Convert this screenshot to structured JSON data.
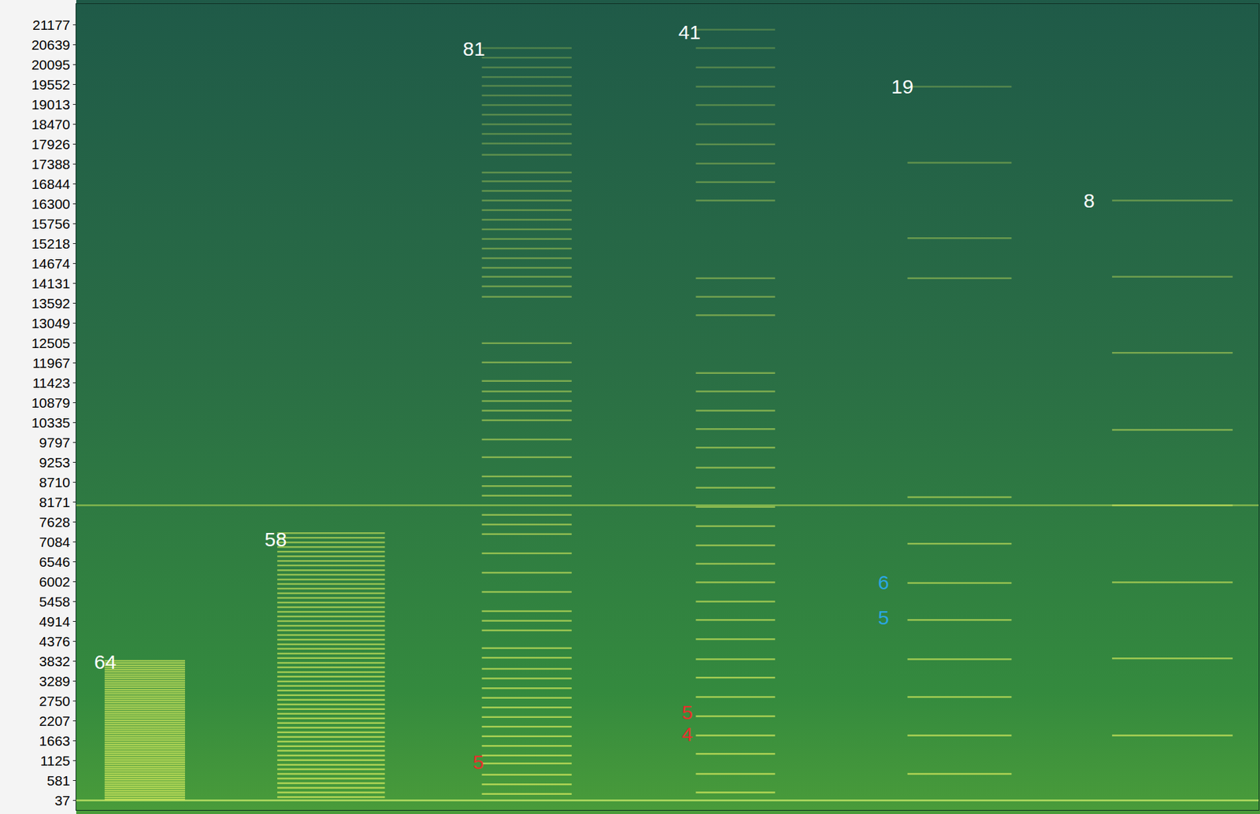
{
  "chart_data": {
    "type": "spectrogram",
    "xlim": [
      0,
      100
    ],
    "ylim": [
      -225,
      21745
    ],
    "yticks": [
      37,
      581,
      1125,
      1663,
      2207,
      2750,
      3289,
      3832,
      4376,
      4914,
      5458,
      6002,
      6546,
      7084,
      7628,
      8171,
      8710,
      9253,
      9797,
      10335,
      10879,
      11423,
      11967,
      12505,
      13049,
      13592,
      14131,
      14674,
      15218,
      15756,
      16300,
      16844,
      17388,
      17926,
      18470,
      19013,
      19552,
      20095,
      20639,
      21177
    ],
    "grid": false,
    "tick_labels": "y",
    "series": [
      {
        "span": [
          0,
          100
        ],
        "color": "#b9dc55",
        "values": [
          8081
        ]
      },
      {
        "span": [
          0,
          100
        ],
        "color": "#c9e86a",
        "values": [
          37
        ]
      },
      {
        "span": [
          2.4,
          9.2
        ],
        "color": "#c8e25a",
        "values": [
          60,
          120,
          180,
          240,
          300,
          360,
          420,
          480,
          540,
          600,
          660,
          720,
          780,
          840,
          900,
          960,
          1020,
          1080,
          1140,
          1200,
          1260,
          1320,
          1380,
          1440,
          1500,
          1560,
          1620,
          1680,
          1740,
          1800,
          1860,
          1920,
          1980,
          2040,
          2100,
          2160,
          2220,
          2280,
          2340,
          2400,
          2460,
          2520,
          2580,
          2640,
          2700,
          2760,
          2820,
          2880,
          2940,
          3000,
          3060,
          3120,
          3180,
          3240,
          3300,
          3360,
          3420,
          3480,
          3540,
          3600,
          3660,
          3720,
          3780,
          3840
        ]
      },
      {
        "span": [
          17,
          26.1
        ],
        "color": "#c8e25a",
        "values": [
          128,
          252,
          380,
          505,
          632,
          758,
          885,
          1010,
          1136,
          1262,
          1390,
          1515,
          1642,
          1768,
          1895,
          2020,
          2148,
          2272,
          2400,
          2525,
          2652,
          2778,
          2905,
          3030,
          3158,
          3282,
          3410,
          3535,
          3662,
          3788,
          3915,
          4040,
          4168,
          4292,
          4420,
          4545,
          4672,
          4798,
          4925,
          5050,
          5178,
          5302,
          5430,
          5555,
          5682,
          5808,
          5935,
          6060,
          6188,
          6312,
          6440,
          6565,
          6692,
          6818,
          6945,
          7070,
          7198,
          7322
        ]
      },
      {
        "span": [
          34.3,
          41.9
        ],
        "color": "#c8e25a",
        "values": [
          212,
          474,
          737,
          1043,
          1261,
          1523,
          1786,
          2048,
          2310,
          2573,
          2835,
          3097,
          3360,
          3622,
          3928,
          4190,
          4671,
          4934,
          5196,
          5721,
          6245,
          6770,
          7295,
          7557,
          7819,
          8344,
          8606,
          8868,
          9393,
          9874,
          10399,
          10661,
          10923,
          11186,
          11470,
          11973,
          12497,
          13765,
          14049,
          14312,
          14552,
          14814,
          15077,
          15339,
          15601,
          15864,
          16126,
          16388,
          16651,
          16913,
          17153,
          17634,
          17940,
          18203,
          18465,
          18727,
          18990,
          19252,
          19514,
          19755,
          20017,
          20280,
          20542
        ]
      },
      {
        "span": [
          52.4,
          59.1
        ],
        "color": "#c8e25a",
        "values": [
          256,
          758,
          1305,
          1808,
          2332,
          2857,
          3382,
          3884,
          4431,
          4956,
          5458,
          5983,
          6486,
          6988,
          7513,
          8038,
          8562,
          9109,
          9655,
          10158,
          10661,
          11186,
          11688,
          13262,
          13765,
          14268,
          16388,
          16891,
          17394,
          17918,
          18465,
          18990,
          19492,
          20017,
          20542,
          21044
        ]
      },
      {
        "span": [
          70.3,
          79.1
        ],
        "color": "#c8e25a",
        "values": [
          758,
          1808,
          2857,
          3884,
          4956,
          5961,
          7032,
          8302,
          14268,
          15361,
          17416,
          19492
        ]
      },
      {
        "span": [
          87.6,
          97.8
        ],
        "color": "#c8e25a",
        "values": [
          1808,
          3906,
          5983,
          8081,
          10136,
          12235,
          14312,
          16388
        ]
      }
    ],
    "annotations": [
      {
        "text": "64",
        "x": 1.4,
        "y": 3819,
        "color": "#ffffff"
      },
      {
        "text": "58",
        "x": 15.8,
        "y": 7163,
        "color": "#ffffff"
      },
      {
        "text": "81",
        "x": 32.6,
        "y": 20520,
        "color": "#ffffff"
      },
      {
        "text": "41",
        "x": 50.8,
        "y": 20979,
        "color": "#ffffff"
      },
      {
        "text": "19",
        "x": 68.8,
        "y": 19492,
        "color": "#ffffff"
      },
      {
        "text": "8",
        "x": 85.1,
        "y": 16388,
        "color": "#ffffff"
      },
      {
        "text": "5",
        "x": 33.4,
        "y": 1086,
        "color": "#e8302c"
      },
      {
        "text": "5",
        "x": 51.1,
        "y": 2442,
        "color": "#e8302c"
      },
      {
        "text": "4",
        "x": 51.1,
        "y": 1851,
        "color": "#e8302c"
      },
      {
        "text": "6",
        "x": 67.7,
        "y": 5983,
        "color": "#2aa7e3"
      },
      {
        "text": "5",
        "x": 67.7,
        "y": 5021,
        "color": "#2aa7e3"
      }
    ]
  }
}
